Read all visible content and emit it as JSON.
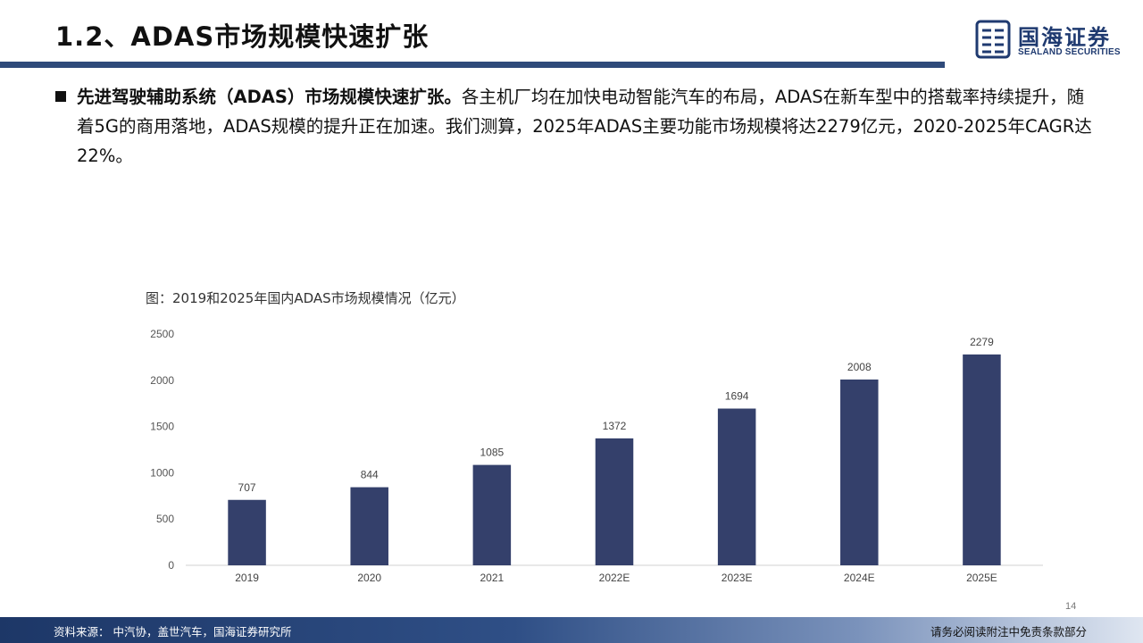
{
  "header": {
    "title": "1.2、ADAS市场规模快速扩张",
    "logo_cn": "国海证券",
    "logo_en": "SEALAND SECURITIES",
    "logo_icon": "sealand-logo-icon",
    "accent_color": "#2f4a7a"
  },
  "bullet": {
    "lead": "先进驾驶辅助系统（ADAS）市场规模快速扩张。",
    "body": "各主机厂均在加快电动智能汽车的布局，ADAS在新车型中的搭载率持续提升，随着5G的商用落地，ADAS规模的提升正在加速。我们测算，2025年ADAS主要功能市场规模将达2279亿元，2020-2025年CAGR达22%。"
  },
  "chart_title": "图：2019和2025年国内ADAS市场规模情况（亿元）",
  "chart_data": {
    "type": "bar",
    "title": "图：2019和2025年国内ADAS市场规模情况（亿元）",
    "xlabel": "",
    "ylabel": "",
    "categories": [
      "2019",
      "2020",
      "2021",
      "2022E",
      "2023E",
      "2024E",
      "2025E"
    ],
    "values": [
      707,
      844,
      1085,
      1372,
      1694,
      2008,
      2279
    ],
    "ylim": [
      0,
      2500
    ],
    "yticks": [
      "0",
      "500",
      "1000",
      "1500",
      "2000",
      "2500"
    ],
    "grid": false,
    "bar_color": "#34406b",
    "data_labels": true
  },
  "page_number": "14",
  "footer": {
    "source": "资料来源：   中汽协，盖世汽车，国海证券研究所",
    "disclaimer": "请务必阅读附注中免责条款部分"
  }
}
